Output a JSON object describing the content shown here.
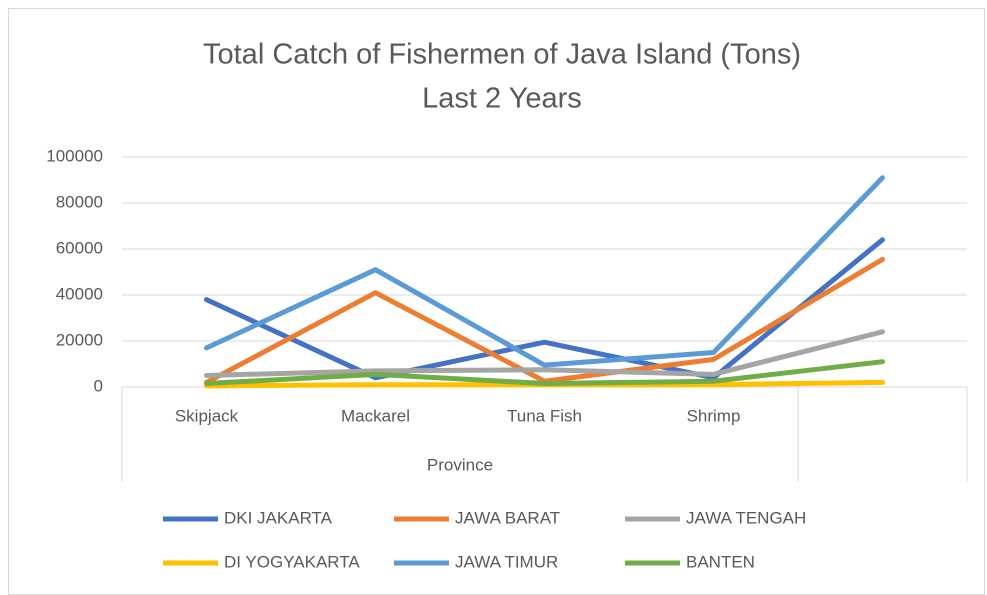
{
  "chart_data": {
    "type": "line",
    "title": "Total Catch of Fishermen of Java Island (Tons)",
    "subtitle": "Last 2 Years",
    "x_label": "Province",
    "categories": [
      "Skipjack",
      "Mackarel",
      "Tuna Fish",
      "Shrimp",
      null
    ],
    "series": [
      {
        "name": "DKI JAKARTA",
        "color": "#4472c4",
        "values": [
          38000,
          4000,
          19500,
          4000,
          64000
        ]
      },
      {
        "name": "JAWA BARAT",
        "color": "#ed7d31",
        "values": [
          2000,
          41000,
          2500,
          12000,
          55500
        ]
      },
      {
        "name": "JAWA TENGAH",
        "color": "#a5a5a5",
        "values": [
          5000,
          7000,
          7500,
          5500,
          24000
        ]
      },
      {
        "name": "DI YOGYAKARTA",
        "color": "#ffc000",
        "values": [
          500,
          1000,
          1000,
          1000,
          2000
        ]
      },
      {
        "name": "JAWA TIMUR",
        "color": "#5b9bd5",
        "values": [
          17000,
          51000,
          9500,
          15000,
          91000
        ]
      },
      {
        "name": "BANTEN",
        "color": "#70ad47",
        "values": [
          1500,
          5500,
          1500,
          2500,
          11000
        ]
      }
    ],
    "ylim": [
      0,
      100000
    ],
    "yticks": [
      0,
      20000,
      40000,
      60000,
      80000,
      100000
    ],
    "grid": true,
    "legend": "bottom"
  }
}
